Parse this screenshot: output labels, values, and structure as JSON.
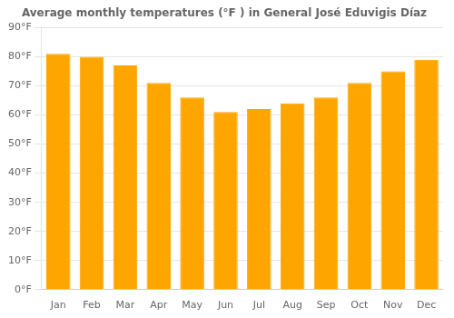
{
  "chart_data": {
    "type": "bar",
    "title": "Average monthly temperatures (°F ) in General José Eduvigis Díaz",
    "categories": [
      "Jan",
      "Feb",
      "Mar",
      "Apr",
      "May",
      "Jun",
      "Jul",
      "Aug",
      "Sep",
      "Oct",
      "Nov",
      "Dec"
    ],
    "values": [
      81,
      80,
      77,
      71,
      66,
      61,
      62,
      64,
      66,
      71,
      75,
      79
    ],
    "color": "#FFA500",
    "ylim": [
      0,
      90
    ],
    "yticks": [
      {
        "value": 0,
        "label": "0°F"
      },
      {
        "value": 10,
        "label": "10°F"
      },
      {
        "value": 20,
        "label": "20°F"
      },
      {
        "value": 30,
        "label": "30°F"
      },
      {
        "value": 40,
        "label": "40°F"
      },
      {
        "value": 50,
        "label": "50°F"
      },
      {
        "value": 60,
        "label": "60°F"
      },
      {
        "value": 70,
        "label": "70°F"
      },
      {
        "value": 80,
        "label": "80°F"
      },
      {
        "value": 90,
        "label": "90°F"
      }
    ],
    "grid": true
  }
}
